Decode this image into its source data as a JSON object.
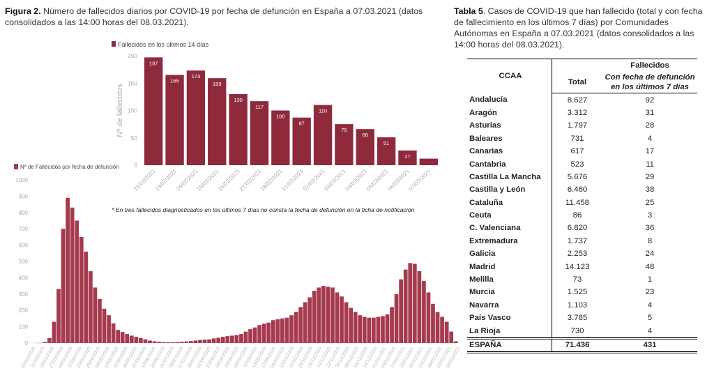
{
  "figure_caption": {
    "label": "Figura 2.",
    "text": " Número de fallecidos diarios por COVID-19 por fecha de defunción en España a 07.03.2021 (datos consolidados a las 14:00 horas del 08.03.2021)."
  },
  "table_caption": {
    "label": "Tabla 5",
    "text": ". Casos de COVID-19 que han fallecido (total y con fecha de fallecimiento en los últimos 7 días) por Comunidades Autónomas en España a 07.03.2021 (datos consolidados a las 14:00 horas del 08.03.2021)."
  },
  "footnote": "* En tres fallecidos diagnosticados en los últimos 7 días no consta la fecha de defunción en la ficha de notificación",
  "chart_data": [
    {
      "type": "bar",
      "legend": "Fallecidos en los últimos 14 días",
      "legend_position": "top-left",
      "ylabel": "Nº de fallecidos",
      "ylim": [
        0,
        200
      ],
      "yticks": [
        0,
        50,
        100,
        150,
        200
      ],
      "color": "#8e2a3c",
      "categories": [
        "22/02/2021",
        "23/02/2021",
        "24/02/2021",
        "25/02/2021",
        "26/02/2021",
        "27/02/2021",
        "28/02/2021",
        "01/03/2021",
        "02/03/2021",
        "03/03/2021",
        "04/03/2021",
        "05/03/2021",
        "06/03/2021",
        "07/03/2021"
      ],
      "values": [
        197,
        165,
        173,
        159,
        130,
        117,
        100,
        87,
        110,
        75,
        66,
        51,
        27,
        12
      ],
      "data_labels": [
        "197",
        "165",
        "173",
        "159",
        "130",
        "117",
        "100",
        "87",
        "110",
        "75",
        "66",
        "51",
        "27",
        ""
      ]
    },
    {
      "type": "bar",
      "legend": "Nº de Fallecidos por fecha de defunción",
      "legend_position": "top-left",
      "ylim": [
        0,
        1000
      ],
      "yticks": [
        0,
        100,
        200,
        300,
        400,
        500,
        600,
        700,
        800,
        900,
        1000
      ],
      "color": "#a63a4e",
      "x_start": "03/03/2020",
      "x_step_days": 4,
      "values": [
        0,
        1,
        5,
        30,
        130,
        330,
        700,
        890,
        830,
        750,
        650,
        560,
        440,
        340,
        270,
        210,
        170,
        120,
        80,
        68,
        55,
        45,
        38,
        30,
        22,
        15,
        10,
        7,
        5,
        4,
        4,
        5,
        7,
        9,
        12,
        15,
        18,
        20,
        22,
        28,
        32,
        38,
        42,
        45,
        48,
        55,
        70,
        85,
        95,
        110,
        118,
        125,
        140,
        145,
        150,
        155,
        170,
        190,
        220,
        250,
        280,
        320,
        340,
        350,
        345,
        340,
        310,
        285,
        250,
        215,
        190,
        170,
        160,
        155,
        155,
        160,
        165,
        175,
        220,
        300,
        390,
        450,
        490,
        485,
        440,
        380,
        310,
        240,
        190,
        160,
        130,
        70,
        10
      ],
      "xtick_labels": [
        "03/03/2020",
        "11/03/2020",
        "19/03/2020",
        "27/03/2020",
        "04/04/2020",
        "12/04/2020",
        "20/04/2020",
        "28/04/2020",
        "06/05/2020",
        "14/05/2020",
        "22/05/2020",
        "30/05/2020",
        "07/06/2020",
        "15/06/2020",
        "23/06/2020",
        "01/07/2020",
        "09/07/2020",
        "17/07/2020",
        "25/07/2020",
        "02/08/2020",
        "10/08/2020",
        "18/08/2020",
        "26/08/2020",
        "03/09/2020",
        "11/09/2020",
        "19/09/2020",
        "27/09/2020",
        "05/10/2020",
        "13/10/2020",
        "21/10/2020",
        "29/10/2020",
        "06/11/2020",
        "14/11/2020",
        "22/11/2020",
        "30/11/2020",
        "08/12/2020",
        "16/12/2020",
        "24/12/2020",
        "01/01/2021",
        "09/01/2021",
        "17/01/2021",
        "25/01/2021",
        "02/02/2021",
        "10/02/2021",
        "18/02/2021",
        "26/02/2021",
        "06/03/2021"
      ]
    }
  ],
  "table": {
    "group_header": "Fallecidos",
    "col_ccaa": "CCAA",
    "col_total": "Total",
    "col_recent": "Con fecha de defunción en los últimos 7 días",
    "rows": [
      {
        "ccaa": "Andalucía",
        "total": "8.627",
        "recent": "92"
      },
      {
        "ccaa": "Aragón",
        "total": "3.312",
        "recent": "31"
      },
      {
        "ccaa": "Asturias",
        "total": "1.797",
        "recent": "28"
      },
      {
        "ccaa": "Baleares",
        "total": "731",
        "recent": "4"
      },
      {
        "ccaa": "Canarias",
        "total": "617",
        "recent": "17"
      },
      {
        "ccaa": "Cantabria",
        "total": "523",
        "recent": "11"
      },
      {
        "ccaa": "Castilla La Mancha",
        "total": "5.676",
        "recent": "29"
      },
      {
        "ccaa": "Castilla y León",
        "total": "6.460",
        "recent": "38"
      },
      {
        "ccaa": "Cataluña",
        "total": "11.458",
        "recent": "25"
      },
      {
        "ccaa": "Ceuta",
        "total": "86",
        "recent": "3"
      },
      {
        "ccaa": "C. Valenciana",
        "total": "6.820",
        "recent": "36"
      },
      {
        "ccaa": "Extremadura",
        "total": "1.737",
        "recent": "8"
      },
      {
        "ccaa": "Galicia",
        "total": "2.253",
        "recent": "24"
      },
      {
        "ccaa": "Madrid",
        "total": "14.123",
        "recent": "48"
      },
      {
        "ccaa": "Melilla",
        "total": "73",
        "recent": "1"
      },
      {
        "ccaa": "Murcia",
        "total": "1.525",
        "recent": "23"
      },
      {
        "ccaa": "Navarra",
        "total": "1.103",
        "recent": "4"
      },
      {
        "ccaa": "País Vasco",
        "total": "3.785",
        "recent": "5"
      },
      {
        "ccaa": "La Rioja",
        "total": "730",
        "recent": "4"
      }
    ],
    "total_row": {
      "ccaa": "ESPAÑA",
      "total": "71.436",
      "recent": "431"
    }
  }
}
